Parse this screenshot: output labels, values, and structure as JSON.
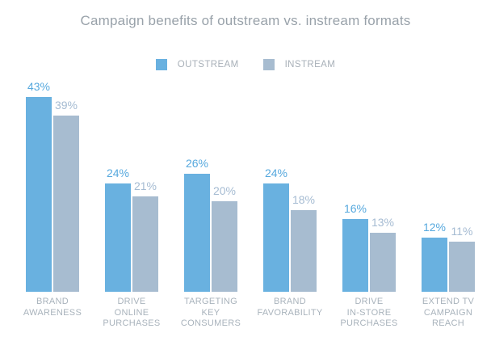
{
  "chart_data": {
    "type": "bar",
    "title": "Campaign benefits of outstream vs. instream formats",
    "value_suffix": "%",
    "categories": [
      [
        "BRAND",
        "AWARENESS"
      ],
      [
        "DRIVE",
        "ONLINE",
        "PURCHASES"
      ],
      [
        "TARGETING",
        "KEY",
        "CONSUMERS"
      ],
      [
        "BRAND",
        "FAVORABILITY"
      ],
      [
        "DRIVE",
        "IN-STORE",
        "PURCHASES"
      ],
      [
        "EXTEND TV",
        "CAMPAIGN",
        "REACH"
      ]
    ],
    "series": [
      {
        "name": "OUTSTREAM",
        "color": "#69B1E0",
        "label_color": "#57A9DE",
        "values": [
          43,
          24,
          26,
          24,
          16,
          12
        ]
      },
      {
        "name": "INSTREAM",
        "color": "#A7BCD0",
        "label_color": "#A5BBD2",
        "values": [
          39,
          21,
          20,
          18,
          13,
          11
        ]
      }
    ],
    "ylim": [
      0,
      48
    ],
    "grid": false,
    "legend_position": "top",
    "colors": {
      "title_text": "#99A2AA",
      "legend_text": "#A8B0B8",
      "category_text": "#A9B3BC",
      "background": "#FFFFFF"
    }
  }
}
